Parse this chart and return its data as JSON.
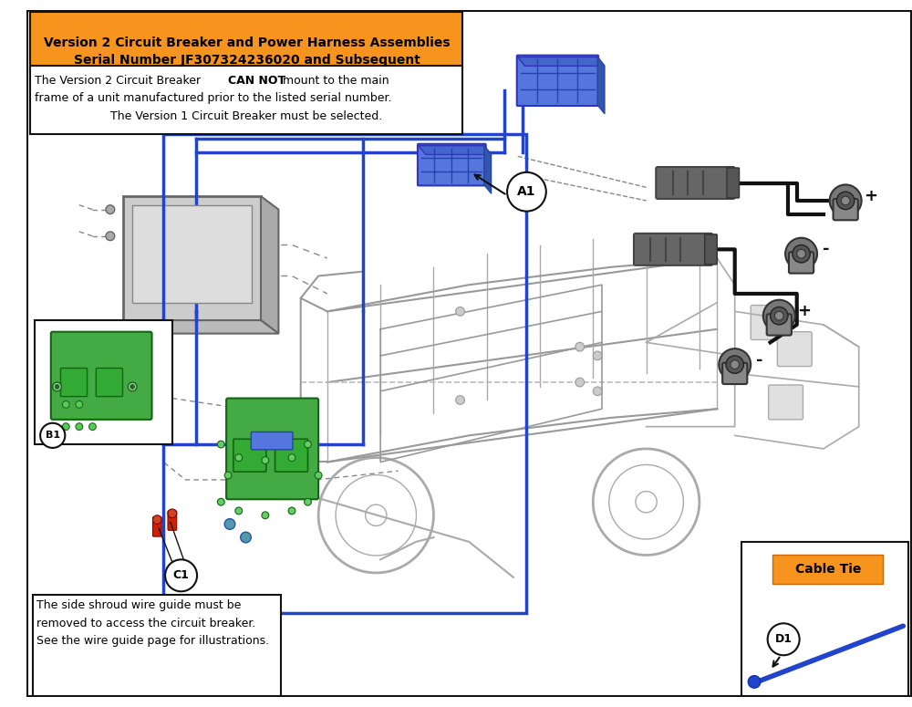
{
  "title_line1": "Version 2 Circuit Breaker and Power Harness Assemblies",
  "title_line2": "Serial Number JF307324236020 and Subsequent",
  "title_bg": "#F7941D",
  "warn_pre": "The Version 2 Circuit Breaker ",
  "warn_bold": "CAN NOT",
  "warn_post": " mount to the main",
  "warn_line2": "frame of a unit manufactured prior to the listed serial number.",
  "warn_line3": "The Version 1 Circuit Breaker must be selected.",
  "bottom_note_l1": "The side shroud wire guide must be",
  "bottom_note_l2": "removed to access the circuit breaker.",
  "bottom_note_l3": "See the wire guide page for illustrations.",
  "cable_tie_label": "Cable Tie",
  "label_A1": "A1",
  "label_B1": "B1",
  "label_C1": "C1",
  "label_D1": "D1",
  "blue": "#2244CC",
  "black": "#111111",
  "green": "#2d8a2d",
  "red": "#cc2200",
  "orange": "#F7941D",
  "gray": "#888888",
  "lightgray": "#cccccc",
  "white": "#ffffff",
  "bg": "#ffffff"
}
